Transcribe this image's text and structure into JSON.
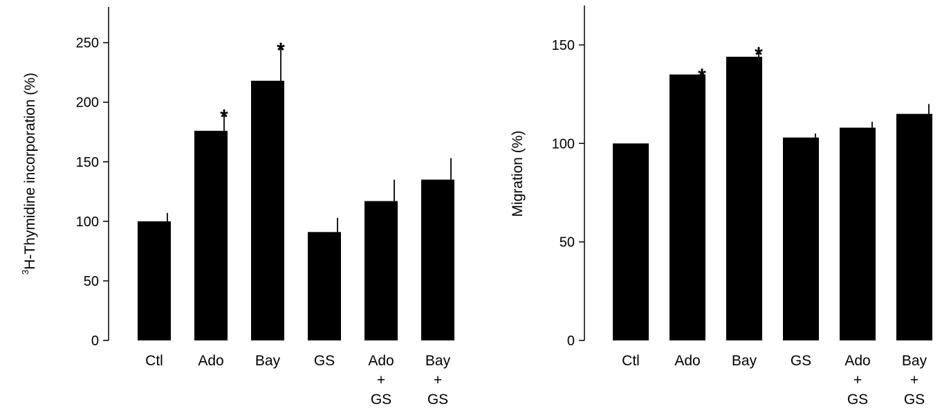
{
  "chart_data": [
    {
      "type": "bar",
      "ylabel_sup": "3",
      "ylabel": "H-Thymidine incorporation (%)",
      "categories": [
        [
          "Ctl"
        ],
        [
          "Ado"
        ],
        [
          "Bay"
        ],
        [
          "GS"
        ],
        [
          "Ado",
          "+",
          "GS"
        ],
        [
          "Bay",
          "+",
          "GS"
        ]
      ],
      "values": [
        100,
        176,
        218,
        91,
        117,
        135
      ],
      "errors": [
        7,
        18,
        32,
        12,
        18,
        18
      ],
      "significance": [
        "",
        "*",
        "*",
        "",
        "",
        ""
      ],
      "yticks": [
        0,
        50,
        100,
        150,
        200,
        250
      ],
      "ylim": [
        0,
        280
      ],
      "bar_color": "#000000"
    },
    {
      "type": "bar",
      "ylabel_sup": "",
      "ylabel": "Migration (%)",
      "categories": [
        [
          "Ctl"
        ],
        [
          "Ado"
        ],
        [
          "Bay"
        ],
        [
          "GS"
        ],
        [
          "Ado",
          "+",
          "GS"
        ],
        [
          "Bay",
          "+",
          "GS"
        ]
      ],
      "values": [
        100,
        135,
        144,
        103,
        108,
        115
      ],
      "errors": [
        0,
        3,
        5,
        2,
        3,
        5
      ],
      "significance": [
        "",
        "*",
        "*",
        "",
        "",
        ""
      ],
      "yticks": [
        0,
        50,
        100,
        150
      ],
      "ylim": [
        0,
        170
      ],
      "bar_color": "#000000"
    }
  ]
}
